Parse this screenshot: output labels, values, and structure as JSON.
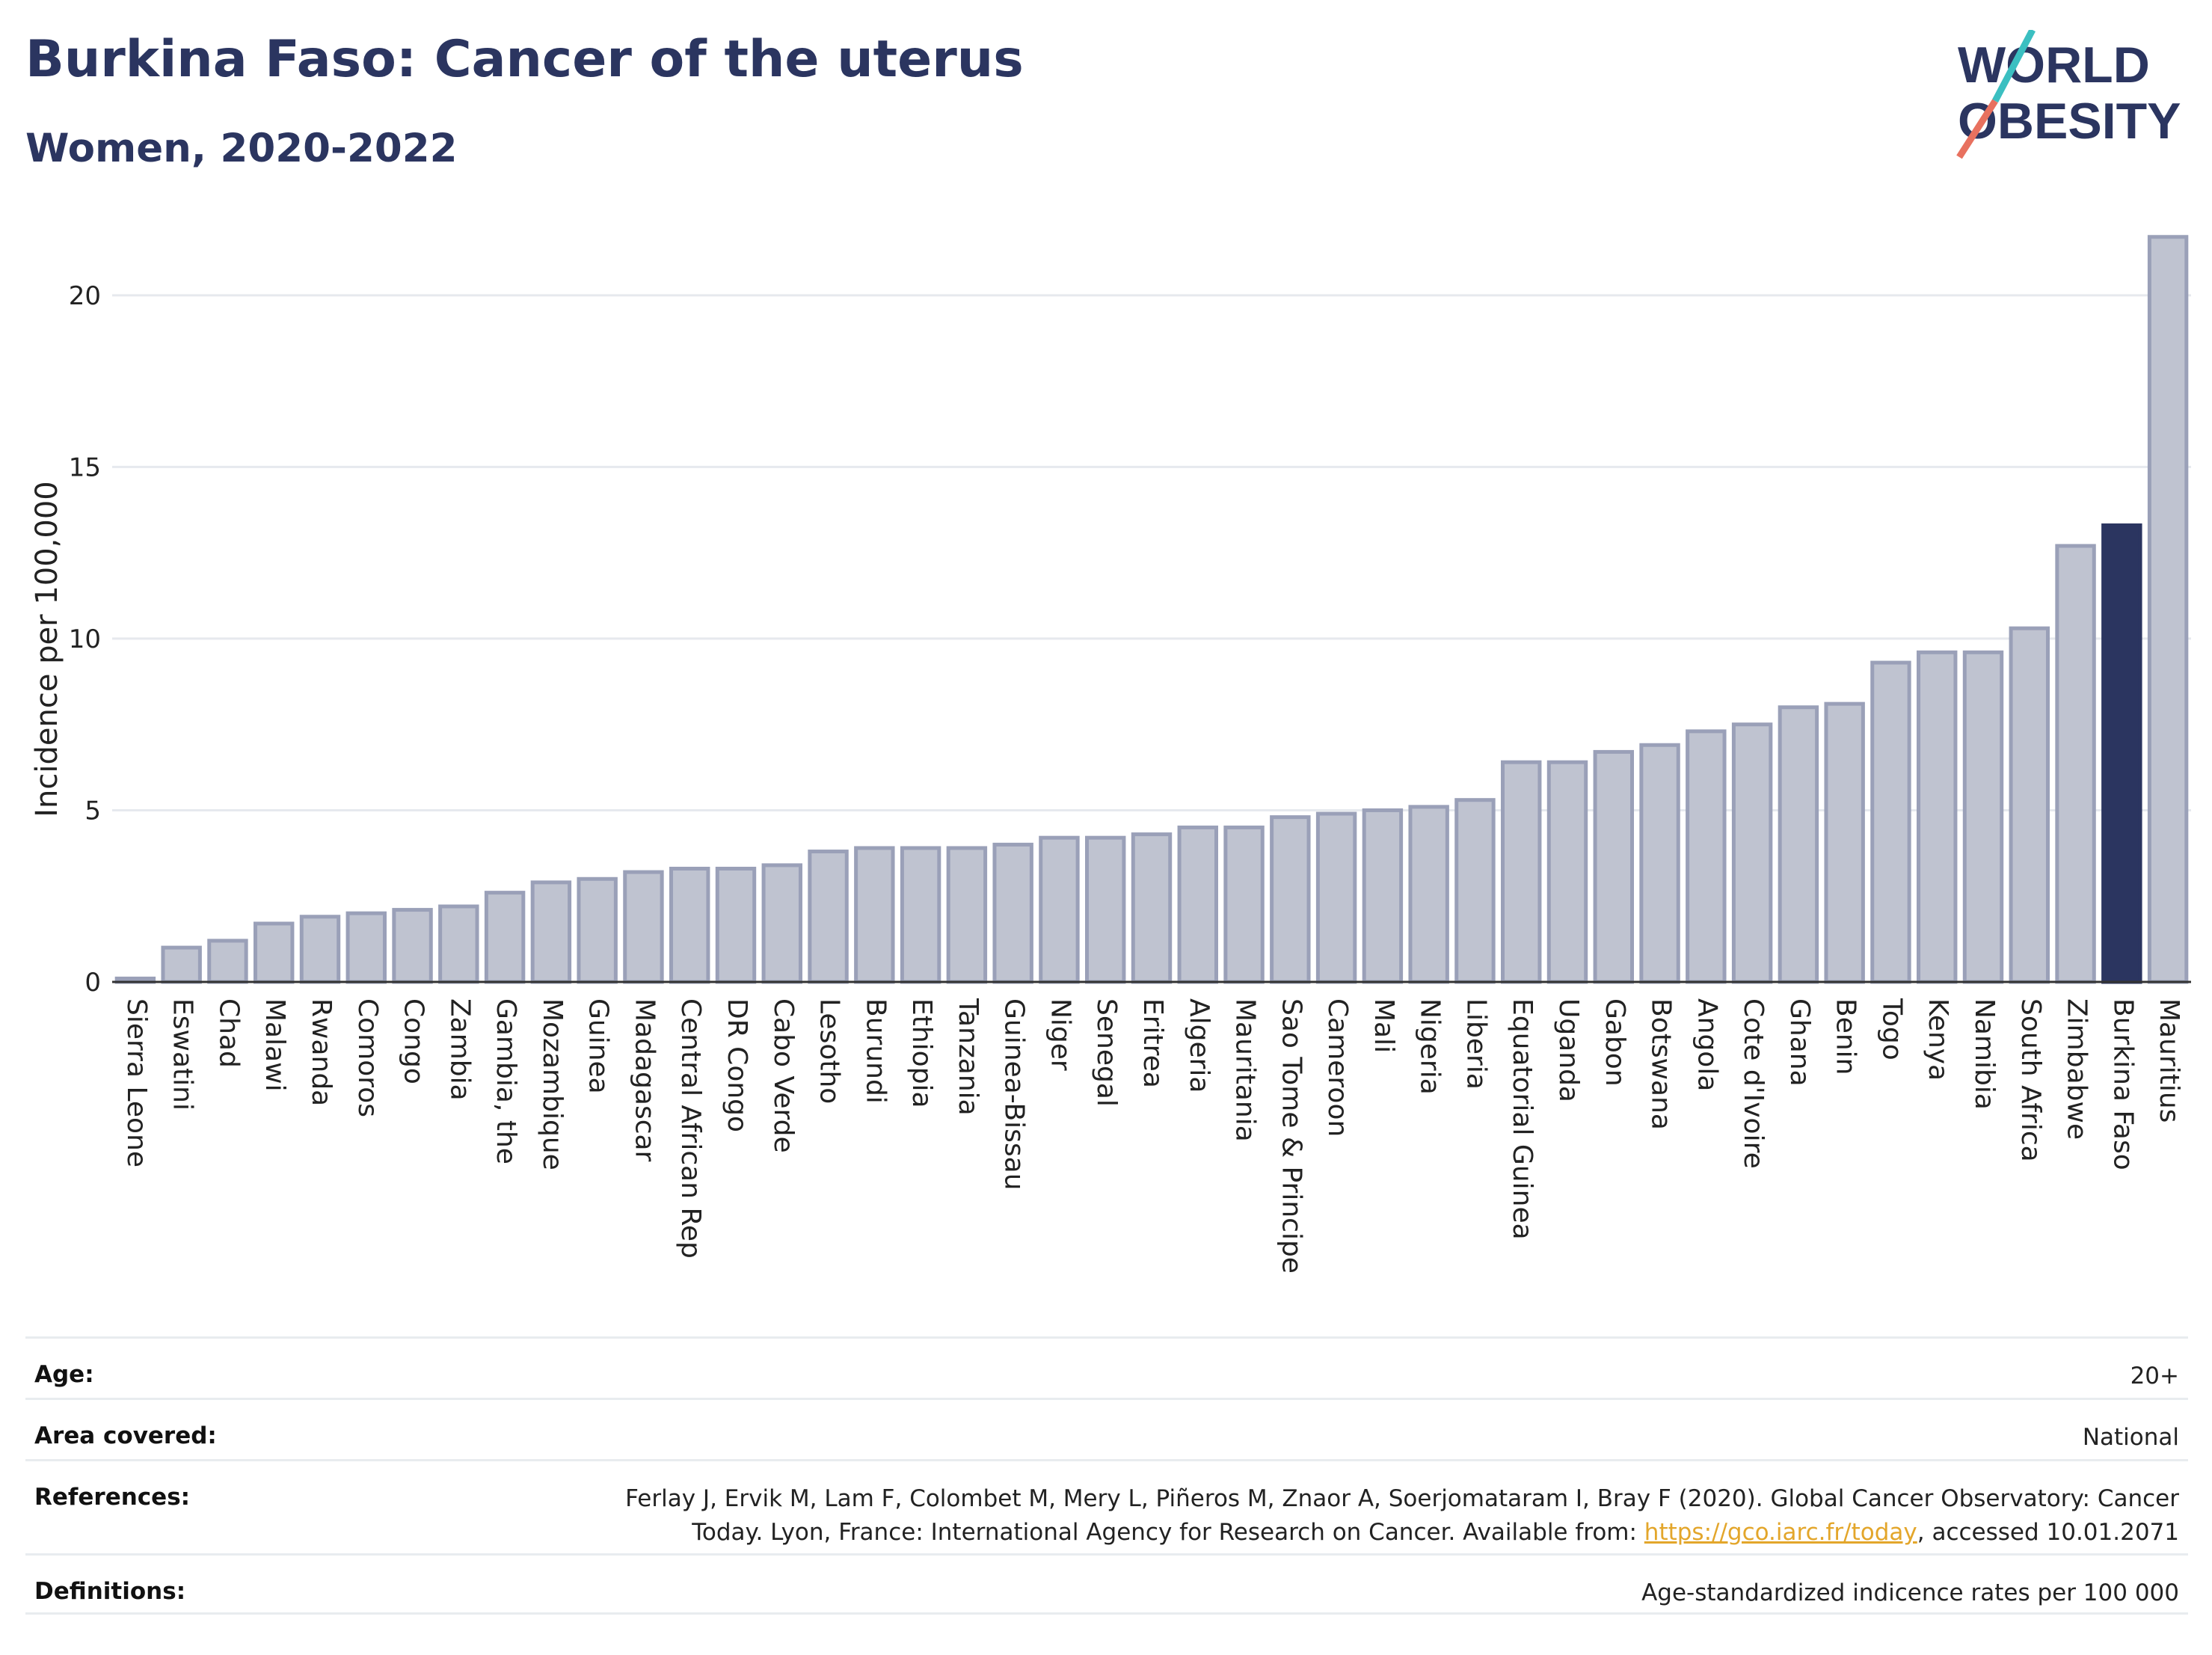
{
  "header": {
    "title": "Burkina Faso: Cancer of the uterus",
    "subtitle": "Women, 2020-2022"
  },
  "logo": {
    "line1": "WORLD",
    "line2": "OBESITY"
  },
  "colors": {
    "bar_fill": "#bfc3d0",
    "bar_stroke": "#9aa0b8",
    "highlight": "#2b3560",
    "grid": "#e6e9ee",
    "axis": "#333333",
    "logo_dark": "#2b3560",
    "logo_teal": "#3bbfc1",
    "logo_coral": "#e8715f"
  },
  "chart_data": {
    "type": "bar",
    "ylabel": "Incidence per 100,000",
    "ylim": [
      0,
      22
    ],
    "yticks": [
      0,
      5,
      10,
      15,
      20
    ],
    "grid": true,
    "highlight": "Burkina Faso",
    "categories": [
      "Sierra Leone",
      "Eswatini",
      "Chad",
      "Malawi",
      "Rwanda",
      "Comoros",
      "Congo",
      "Zambia",
      "Gambia, the",
      "Mozambique",
      "Guinea",
      "Madagascar",
      "Central African Rep",
      "DR Congo",
      "Cabo Verde",
      "Lesotho",
      "Burundi",
      "Ethiopia",
      "Tanzania",
      "Guinea-Bissau",
      "Niger",
      "Senegal",
      "Eritrea",
      "Algeria",
      "Mauritania",
      "Sao Tome & Principe",
      "Cameroon",
      "Mali",
      "Nigeria",
      "Liberia",
      "Equatorial Guinea",
      "Uganda",
      "Gabon",
      "Botswana",
      "Angola",
      "Cote d'Ivoire",
      "Ghana",
      "Benin",
      "Togo",
      "Kenya",
      "Namibia",
      "South Africa",
      "Zimbabwe",
      "Burkina Faso",
      "Mauritius"
    ],
    "values": [
      0.1,
      1.0,
      1.2,
      1.7,
      1.9,
      2.0,
      2.1,
      2.2,
      2.6,
      2.9,
      3.0,
      3.2,
      3.3,
      3.3,
      3.4,
      3.8,
      3.9,
      3.9,
      3.9,
      4.0,
      4.2,
      4.2,
      4.3,
      4.5,
      4.5,
      4.8,
      4.9,
      5.0,
      5.1,
      5.3,
      6.4,
      6.4,
      6.7,
      6.9,
      7.3,
      7.5,
      8.0,
      8.1,
      9.3,
      9.6,
      9.6,
      10.3,
      12.7,
      13.3,
      21.7
    ]
  },
  "meta": {
    "age_label": "Age:",
    "age_value": "20+",
    "area_label": "Area covered:",
    "area_value": "National",
    "ref_label": "References:",
    "ref_text_1": "Ferlay J, Ervik M, Lam F, Colombet M, Mery L, Piñeros M, Znaor A, Soerjomataram I, Bray F (2020). Global Cancer Observatory: Cancer Today. Lyon, France: International Agency for Research on Cancer. Available from: ",
    "ref_link": "https://gco.iarc.fr/today",
    "ref_text_2": ", accessed 10.01.2071",
    "def_label": "Definitions:",
    "def_value": "Age-standardized indicence rates per 100 000"
  }
}
